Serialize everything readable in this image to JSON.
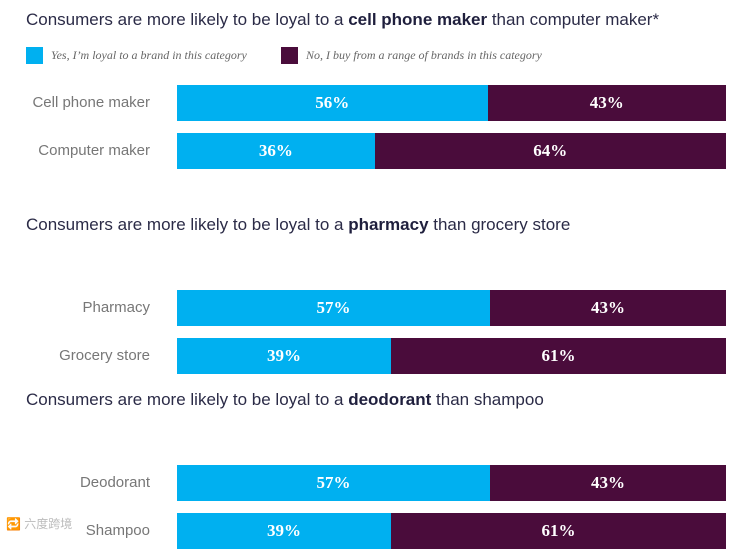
{
  "legend": {
    "yes": "Yes, I’m loyal to a brand in this category",
    "no": "No, I buy from a range of brands in this category"
  },
  "colors": {
    "yes": "#00b0f0",
    "no": "#4a0c3b"
  },
  "watermark": "🔁 六度跨境",
  "chart_data": [
    {
      "type": "bar",
      "orientation": "horizontal",
      "stacked": true,
      "title_parts": [
        "Consumers are more likely to be loyal to a ",
        "cell phone maker",
        " than computer maker*"
      ],
      "categories": [
        "Cell phone maker",
        "Computer maker"
      ],
      "series": [
        {
          "name": "Yes, I’m loyal to a brand in this category",
          "values": [
            56,
            36
          ],
          "labels": [
            "56%",
            "36%"
          ]
        },
        {
          "name": "No, I buy from a range of brands in this category",
          "values": [
            43,
            64
          ],
          "labels": [
            "43%",
            "64%"
          ]
        }
      ]
    },
    {
      "type": "bar",
      "orientation": "horizontal",
      "stacked": true,
      "title_parts": [
        "Consumers are more likely to be loyal to a ",
        "pharmacy",
        " than grocery store"
      ],
      "categories": [
        "Pharmacy",
        "Grocery store"
      ],
      "series": [
        {
          "name": "Yes, I’m loyal to a brand in this category",
          "values": [
            57,
            39
          ],
          "labels": [
            "57%",
            "39%"
          ]
        },
        {
          "name": "No, I buy from a range of brands in this category",
          "values": [
            43,
            61
          ],
          "labels": [
            "43%",
            "61%"
          ]
        }
      ]
    },
    {
      "type": "bar",
      "orientation": "horizontal",
      "stacked": true,
      "title_parts": [
        "Consumers are more likely to be loyal to a ",
        "deodorant",
        " than shampoo"
      ],
      "categories": [
        "Deodorant",
        "Shampoo"
      ],
      "series": [
        {
          "name": "Yes, I’m loyal to a brand in this category",
          "values": [
            57,
            39
          ],
          "labels": [
            "57%",
            "39%"
          ]
        },
        {
          "name": "No, I buy from a range of brands in this category",
          "values": [
            43,
            61
          ],
          "labels": [
            "43%",
            "61%"
          ]
        }
      ]
    }
  ]
}
